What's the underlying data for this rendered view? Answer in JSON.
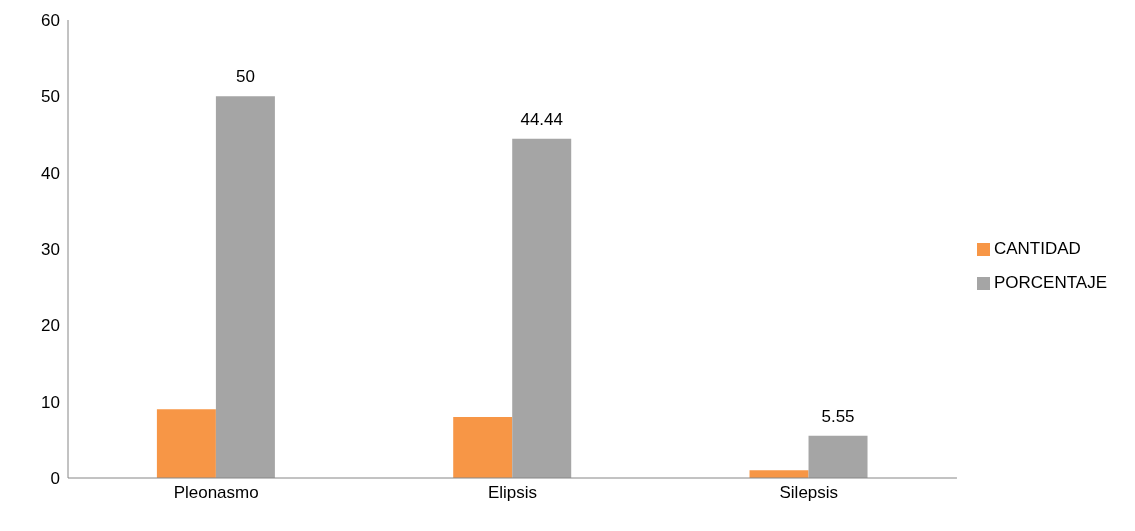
{
  "chart_data": {
    "type": "bar",
    "categories": [
      "Pleonasmo",
      "Elipsis",
      "Silepsis"
    ],
    "series": [
      {
        "name": "CANTIDAD",
        "color": "#f79646",
        "values": [
          9,
          8,
          1
        ]
      },
      {
        "name": "PORCENTAJE",
        "color": "#a5a5a5",
        "values": [
          50,
          44.44,
          5.55
        ],
        "value_labels": [
          "50",
          "44.44",
          "5.55"
        ]
      }
    ],
    "ylim": [
      0,
      60
    ],
    "yticks": [
      0,
      10,
      20,
      30,
      40,
      50,
      60
    ],
    "grid": false,
    "legend": "right"
  }
}
